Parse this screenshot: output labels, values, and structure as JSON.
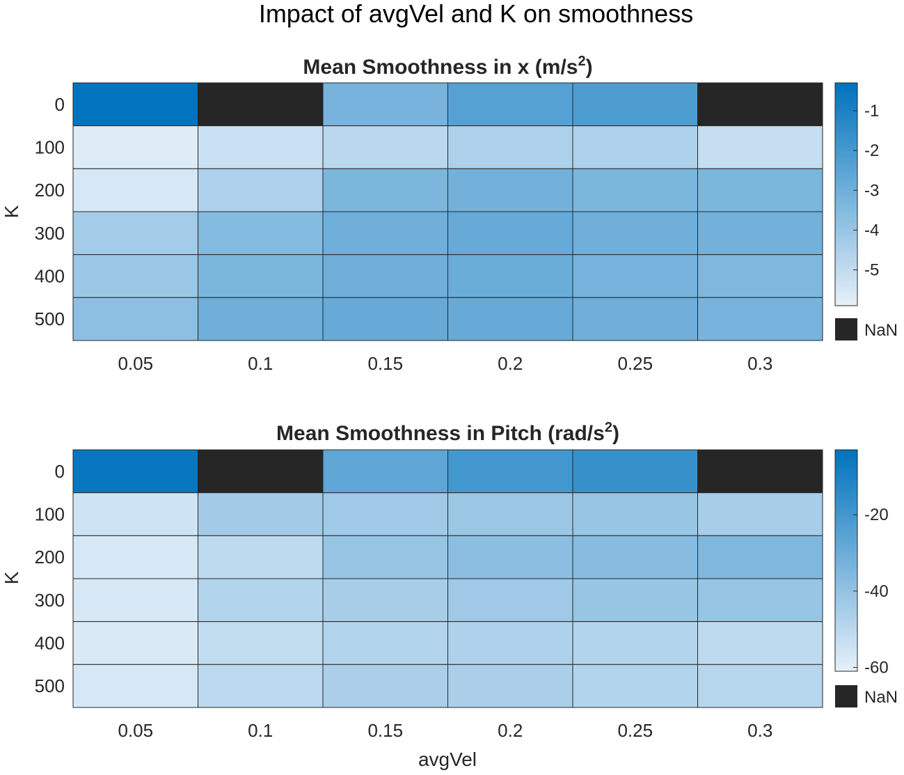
{
  "figure": {
    "suptitle": "Impact of avgVel and K on smoothness",
    "xlabel": "avgVel",
    "nan_label": "NaN"
  },
  "chart_data": [
    {
      "type": "heatmap",
      "title": "Mean Smoothness in x (m/s",
      "title_superscript": "2",
      "title_suffix": ")",
      "xlabel": "",
      "ylabel": "K",
      "x_categories": [
        "0.05",
        "0.1",
        "0.15",
        "0.2",
        "0.25",
        "0.3"
      ],
      "y_categories": [
        "0",
        "100",
        "200",
        "300",
        "400",
        "500"
      ],
      "values": [
        [
          -0.35,
          null,
          -3.2,
          -2.4,
          -2.2,
          null
        ],
        [
          -5.7,
          -5.2,
          -4.8,
          -4.5,
          -4.5,
          -5.1
        ],
        [
          -5.5,
          -4.5,
          -3.3,
          -3.1,
          -3.3,
          -3.3
        ],
        [
          -4.3,
          -3.5,
          -3.0,
          -2.8,
          -3.0,
          -3.1
        ],
        [
          -4.1,
          -3.3,
          -3.0,
          -2.9,
          -3.2,
          -3.4
        ],
        [
          -3.7,
          -3.0,
          -2.8,
          -2.8,
          -3.0,
          -3.2
        ]
      ],
      "clim": [
        -5.9,
        -0.3
      ],
      "colorbar_ticks": [
        -1,
        -2,
        -3,
        -4,
        -5
      ],
      "colormap": {
        "low": "#e6f0f9",
        "high": "#0072bd"
      },
      "nan_color": "#262626"
    },
    {
      "type": "heatmap",
      "title": "Mean Smoothness in Pitch (rad/s",
      "title_superscript": "2",
      "title_suffix": ")",
      "xlabel": "avgVel",
      "ylabel": "K",
      "x_categories": [
        "0.05",
        "0.1",
        "0.15",
        "0.2",
        "0.25",
        "0.3"
      ],
      "y_categories": [
        "0",
        "100",
        "200",
        "300",
        "400",
        "500"
      ],
      "values": [
        [
          -5,
          null,
          -27,
          -20,
          -17,
          null
        ],
        [
          -55,
          -44,
          -43,
          -42,
          -41,
          -45
        ],
        [
          -57,
          -51,
          -41,
          -38,
          -37,
          -35
        ],
        [
          -57,
          -48,
          -45,
          -43,
          -41,
          -41
        ],
        [
          -58,
          -52,
          -48,
          -47,
          -48,
          -51
        ],
        [
          -57,
          -50,
          -46,
          -46,
          -48,
          -49
        ]
      ],
      "clim": [
        -61,
        -3
      ],
      "colorbar_ticks": [
        -20,
        -40,
        -60
      ],
      "colormap": {
        "low": "#e6f0f9",
        "high": "#0072bd"
      },
      "nan_color": "#262626"
    }
  ]
}
